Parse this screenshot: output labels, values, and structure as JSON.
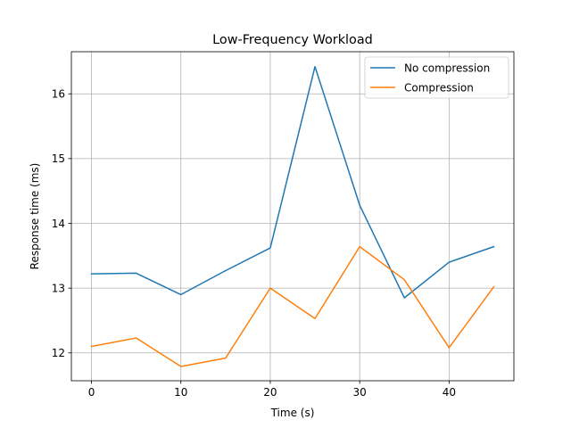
{
  "chart_data": {
    "type": "line",
    "title": "Low-Frequency Workload",
    "xlabel": "Time (s)",
    "ylabel": "Response time (ms)",
    "xlim": [
      -2.25,
      47.25
    ],
    "ylim": [
      11.57,
      16.65
    ],
    "xticks": [
      0,
      10,
      20,
      30,
      40
    ],
    "yticks": [
      12,
      13,
      14,
      15,
      16
    ],
    "grid": true,
    "legend_position": "top-right",
    "x": [
      0,
      5,
      10,
      15,
      20,
      25,
      30,
      35,
      40,
      45
    ],
    "series": [
      {
        "name": "No compression",
        "color": "#1f77b4",
        "values": [
          13.22,
          13.23,
          12.9,
          13.27,
          13.62,
          16.42,
          14.28,
          12.85,
          13.4,
          13.64
        ]
      },
      {
        "name": "Compression",
        "color": "#ff7f0e",
        "values": [
          12.1,
          12.23,
          11.79,
          11.92,
          13.0,
          12.53,
          13.64,
          13.13,
          12.08,
          13.02
        ]
      }
    ]
  }
}
